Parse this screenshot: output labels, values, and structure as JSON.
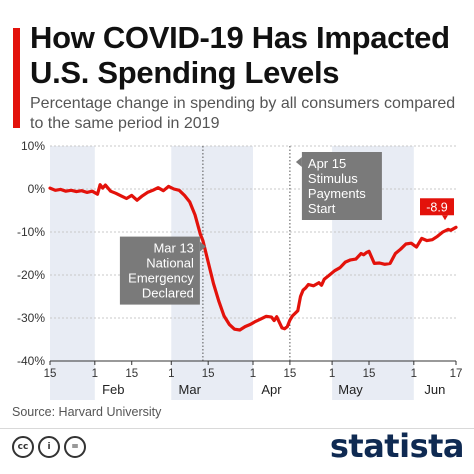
{
  "header": {
    "title": "How COVID-19 Has Impacted U.S. Spending Levels",
    "subtitle": "Percentage change in spending by all consumers compared to the same period in 2019"
  },
  "colors": {
    "accent": "#e3120b",
    "line": "#e3120b",
    "band": "#e8ecf4",
    "annotation_bg": "#7a7a7a",
    "brand": "#0f2a52"
  },
  "chart_data": {
    "type": "line",
    "title": "How COVID-19 Has Impacted U.S. Spending Levels",
    "subtitle": "Percentage change in spending by all consumers compared to the same period in 2019",
    "xlabel": "",
    "ylabel": "",
    "ylim": [
      -40,
      10
    ],
    "xlim": [
      "2020-01-15",
      "2020-06-17"
    ],
    "y_ticks": [
      "10%",
      "0%",
      "-10%",
      "-20%",
      "-30%",
      "-40%"
    ],
    "y_tick_values": [
      10,
      0,
      -10,
      -20,
      -30,
      -40
    ],
    "x_ticks": [
      {
        "label": "15",
        "date": "2020-01-15"
      },
      {
        "label": "1",
        "date": "2020-02-01"
      },
      {
        "label": "15",
        "date": "2020-02-15"
      },
      {
        "label": "1",
        "date": "2020-03-01"
      },
      {
        "label": "15",
        "date": "2020-03-15"
      },
      {
        "label": "1",
        "date": "2020-04-01"
      },
      {
        "label": "15",
        "date": "2020-04-15"
      },
      {
        "label": "1",
        "date": "2020-05-01"
      },
      {
        "label": "15",
        "date": "2020-05-15"
      },
      {
        "label": "1",
        "date": "2020-06-01"
      },
      {
        "label": "17",
        "date": "2020-06-17"
      }
    ],
    "month_labels": [
      {
        "label": "Feb",
        "date": "2020-02-08"
      },
      {
        "label": "Mar",
        "date": "2020-03-08"
      },
      {
        "label": "Apr",
        "date": "2020-04-08"
      },
      {
        "label": "May",
        "date": "2020-05-08"
      },
      {
        "label": "Jun",
        "date": "2020-06-09"
      }
    ],
    "month_bands": [
      {
        "start": "2020-01-15",
        "end": "2020-02-01"
      },
      {
        "start": "2020-03-01",
        "end": "2020-04-01"
      },
      {
        "start": "2020-05-01",
        "end": "2020-06-01"
      }
    ],
    "grid": true,
    "series": [
      {
        "points": [
          [
            "2020-01-15",
            0.2
          ],
          [
            "2020-01-17",
            -0.3
          ],
          [
            "2020-01-19",
            -0.1
          ],
          [
            "2020-01-21",
            -0.5
          ],
          [
            "2020-01-23",
            -0.3
          ],
          [
            "2020-01-25",
            -0.6
          ],
          [
            "2020-01-27",
            -0.4
          ],
          [
            "2020-01-29",
            -0.8
          ],
          [
            "2020-01-31",
            -0.5
          ],
          [
            "2020-02-02",
            -1.2
          ],
          [
            "2020-02-03",
            1.0
          ],
          [
            "2020-02-04",
            0.2
          ],
          [
            "2020-02-05",
            0.9
          ],
          [
            "2020-02-07",
            -0.5
          ],
          [
            "2020-02-09",
            -1.0
          ],
          [
            "2020-02-11",
            -1.6
          ],
          [
            "2020-02-13",
            -2.2
          ],
          [
            "2020-02-15",
            -1.5
          ],
          [
            "2020-02-17",
            -2.6
          ],
          [
            "2020-02-19",
            -1.6
          ],
          [
            "2020-02-21",
            -0.8
          ],
          [
            "2020-02-23",
            -0.3
          ],
          [
            "2020-02-25",
            0.3
          ],
          [
            "2020-02-27",
            -0.4
          ],
          [
            "2020-02-29",
            0.6
          ],
          [
            "2020-03-02",
            0.0
          ],
          [
            "2020-03-04",
            -0.3
          ],
          [
            "2020-03-06",
            -1.5
          ],
          [
            "2020-03-08",
            -3.0
          ],
          [
            "2020-03-10",
            -6.0
          ],
          [
            "2020-03-12",
            -10.5
          ],
          [
            "2020-03-13",
            -12.0
          ],
          [
            "2020-03-15",
            -17.0
          ],
          [
            "2020-03-17",
            -22.0
          ],
          [
            "2020-03-19",
            -26.0
          ],
          [
            "2020-03-21",
            -29.5
          ],
          [
            "2020-03-23",
            -31.5
          ],
          [
            "2020-03-25",
            -32.6
          ],
          [
            "2020-03-27",
            -32.8
          ],
          [
            "2020-03-29",
            -32.0
          ],
          [
            "2020-03-31",
            -31.5
          ],
          [
            "2020-04-02",
            -30.8
          ],
          [
            "2020-04-04",
            -30.2
          ],
          [
            "2020-04-06",
            -29.6
          ],
          [
            "2020-04-08",
            -29.8
          ],
          [
            "2020-04-09",
            -30.6
          ],
          [
            "2020-04-10",
            -29.7
          ],
          [
            "2020-04-12",
            -32.3
          ],
          [
            "2020-04-13",
            -32.5
          ],
          [
            "2020-04-14",
            -32.0
          ],
          [
            "2020-04-15",
            -30.5
          ],
          [
            "2020-04-16",
            -29.5
          ],
          [
            "2020-04-18",
            -28.3
          ],
          [
            "2020-04-19",
            -25.0
          ],
          [
            "2020-04-20",
            -23.5
          ],
          [
            "2020-04-21",
            -23.0
          ],
          [
            "2020-04-22",
            -22.2
          ],
          [
            "2020-04-24",
            -22.5
          ],
          [
            "2020-04-26",
            -21.8
          ],
          [
            "2020-04-27",
            -22.4
          ],
          [
            "2020-04-28",
            -21.0
          ],
          [
            "2020-04-30",
            -20.0
          ],
          [
            "2020-05-02",
            -19.0
          ],
          [
            "2020-05-04",
            -18.3
          ],
          [
            "2020-05-06",
            -17.0
          ],
          [
            "2020-05-08",
            -16.5
          ],
          [
            "2020-05-10",
            -16.3
          ],
          [
            "2020-05-12",
            -15.0
          ],
          [
            "2020-05-13",
            -15.3
          ],
          [
            "2020-05-14",
            -14.8
          ],
          [
            "2020-05-15",
            -14.5
          ],
          [
            "2020-05-17",
            -17.3
          ],
          [
            "2020-05-19",
            -17.2
          ],
          [
            "2020-05-21",
            -17.5
          ],
          [
            "2020-05-23",
            -17.3
          ],
          [
            "2020-05-25",
            -15.0
          ],
          [
            "2020-05-27",
            -14.0
          ],
          [
            "2020-05-29",
            -12.8
          ],
          [
            "2020-05-31",
            -12.6
          ],
          [
            "2020-06-02",
            -13.5
          ],
          [
            "2020-06-04",
            -11.5
          ],
          [
            "2020-06-06",
            -12.0
          ],
          [
            "2020-06-08",
            -11.8
          ],
          [
            "2020-06-10",
            -11.0
          ],
          [
            "2020-06-12",
            -10.0
          ],
          [
            "2020-06-14",
            -9.4
          ],
          [
            "2020-06-15",
            -9.6
          ],
          [
            "2020-06-17",
            -8.9
          ]
        ]
      }
    ],
    "annotations": [
      {
        "id": "mar13",
        "lines": [
          "Mar 13",
          "National",
          "Emergency",
          "Declared"
        ],
        "date": "2020-03-13",
        "value": -12.0
      },
      {
        "id": "apr15",
        "lines": [
          "Apr 15",
          "Stimulus",
          "Payments",
          "Start"
        ],
        "date": "2020-04-15",
        "value": -30.5
      }
    ],
    "end_label": "-8.9"
  },
  "footer": {
    "source": "Source: Harvard University",
    "license_icons": [
      {
        "name": "cc-icon",
        "glyph": "cc"
      },
      {
        "name": "by-icon",
        "glyph": "i"
      },
      {
        "name": "nd-icon",
        "glyph": "="
      }
    ],
    "brand": "statista"
  }
}
